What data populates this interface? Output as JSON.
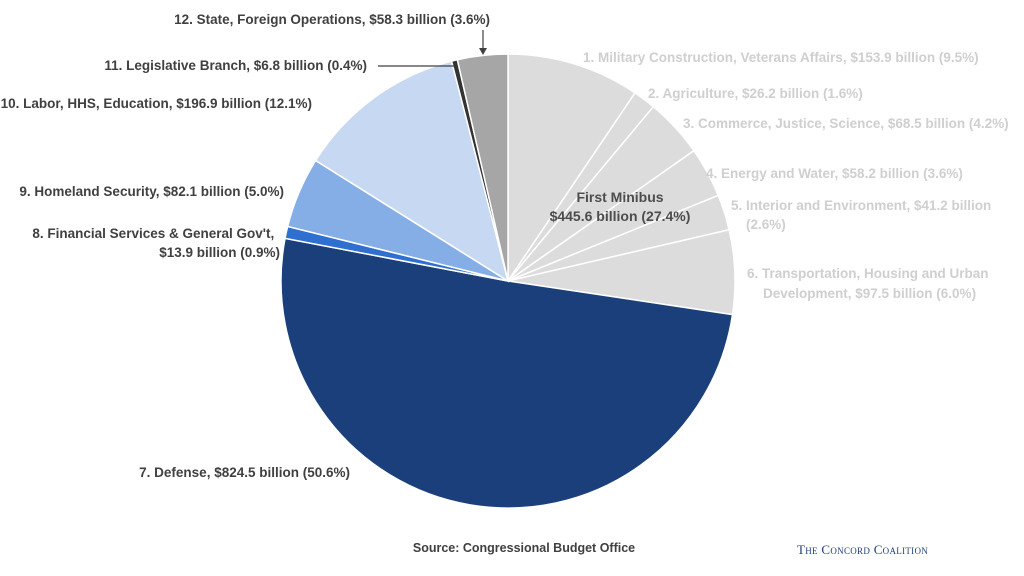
{
  "chart_data": {
    "type": "pie",
    "title": "",
    "units": "billion",
    "group_annotation": {
      "line1": "First Minibus",
      "line2": "$445.6 billion (27.4%)"
    },
    "slices": [
      {
        "label": "1. Military Construction, Veterans Affairs, $153.9 billion (9.5%)",
        "value": 153.9,
        "percent": 9.5,
        "color": "#dcdcdc",
        "group": "First Minibus"
      },
      {
        "label": "2. Agriculture, $26.2 billion (1.6%)",
        "value": 26.2,
        "percent": 1.6,
        "color": "#dcdcdc",
        "group": "First Minibus"
      },
      {
        "label": "3. Commerce, Justice, Science, $68.5 billion (4.2%)",
        "value": 68.5,
        "percent": 4.2,
        "color": "#dcdcdc",
        "group": "First Minibus"
      },
      {
        "label": "4. Energy and Water, $58.2 billion (3.6%)",
        "value": 58.2,
        "percent": 3.6,
        "color": "#dcdcdc",
        "group": "First Minibus"
      },
      {
        "label": "5. Interior and Environment, $41.2 billion (2.6%)",
        "value": 41.2,
        "percent": 2.6,
        "color": "#dcdcdc",
        "group": "First Minibus"
      },
      {
        "label": "6. Transportation, Housing and Urban Development, $97.5 billion (6.0%)",
        "value": 97.5,
        "percent": 6.0,
        "color": "#dcdcdc",
        "group": "First Minibus"
      },
      {
        "label": "7. Defense, $824.5 billion (50.6%)",
        "value": 824.5,
        "percent": 50.6,
        "color": "#1b3f7a"
      },
      {
        "label": "8. Financial Services & General Gov't, $13.9 billion (0.9%)",
        "value": 13.9,
        "percent": 0.9,
        "color": "#2f6fd0"
      },
      {
        "label": "9. Homeland Security, $82.1 billion (5.0%)",
        "value": 82.1,
        "percent": 5.0,
        "color": "#86aee6"
      },
      {
        "label": "10. Labor, HHS, Education, $196.9 billion (12.1%)",
        "value": 196.9,
        "percent": 12.1,
        "color": "#c6d8f2"
      },
      {
        "label": "11. Legislative Branch, $6.8 billion (0.4%)",
        "value": 6.8,
        "percent": 0.4,
        "color": "#333333"
      },
      {
        "label": "12. State, Foreign Operations, $58.3 billion (3.6%)",
        "value": 58.3,
        "percent": 3.6,
        "color": "#a6a6a6"
      }
    ]
  },
  "footer": {
    "source": "Source: Congressional Budget Office",
    "brand": "The Concord Coalition"
  }
}
